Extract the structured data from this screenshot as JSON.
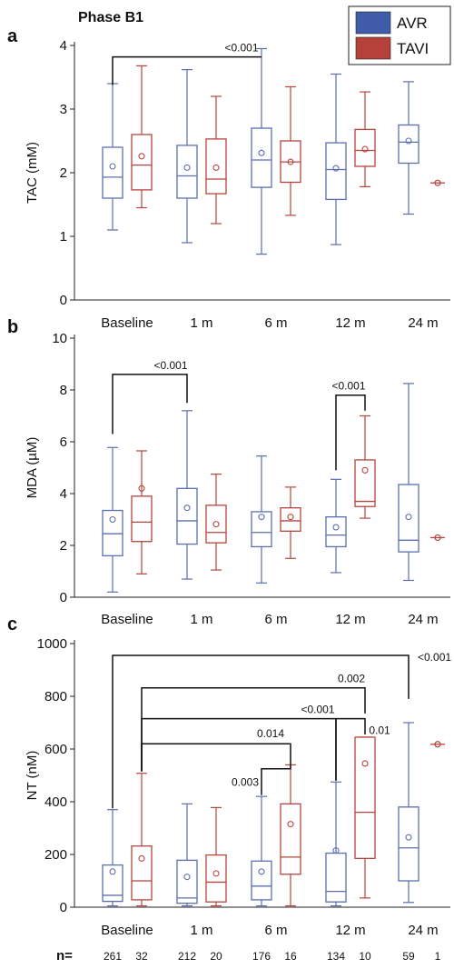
{
  "figure": {
    "phase_label": "Phase B1",
    "legend": [
      {
        "name": "AVR",
        "color": "#3F5BA9"
      },
      {
        "name": "TAVI",
        "color": "#B5413B"
      }
    ],
    "n_label": "n=",
    "n_values": [
      "261",
      "32",
      "212",
      "20",
      "176",
      "16",
      "134",
      "10",
      "59",
      "1"
    ]
  },
  "colors": {
    "AVR": "#5B6FB0",
    "TAVI": "#B5453D",
    "AVR_fill": "#3F5BA9",
    "TAVI_fill": "#B5413B"
  },
  "chart_data": [
    {
      "panel": "a",
      "type": "box",
      "ylabel": "TAC (mM)",
      "ylim": [
        0,
        4
      ],
      "yticks": [
        "0",
        "1",
        "2",
        "3",
        "4"
      ],
      "categories": [
        "Baseline",
        "1 m",
        "6 m",
        "12 m",
        "24 m"
      ],
      "series": [
        {
          "name": "AVR",
          "boxes": [
            {
              "min": 1.1,
              "q1": 1.6,
              "median": 1.93,
              "q3": 2.4,
              "max": 3.4,
              "mean": 2.1
            },
            {
              "min": 0.9,
              "q1": 1.6,
              "median": 1.95,
              "q3": 2.43,
              "max": 3.62,
              "mean": 2.08
            },
            {
              "min": 0.72,
              "q1": 1.77,
              "median": 2.2,
              "q3": 2.7,
              "max": 3.95,
              "mean": 2.31
            },
            {
              "min": 0.87,
              "q1": 1.58,
              "median": 2.05,
              "q3": 2.47,
              "max": 3.55,
              "mean": 2.07
            },
            {
              "min": 1.35,
              "q1": 2.15,
              "median": 2.48,
              "q3": 2.75,
              "max": 3.43,
              "mean": 2.5
            }
          ]
        },
        {
          "name": "TAVI",
          "boxes": [
            {
              "min": 1.45,
              "q1": 1.73,
              "median": 2.12,
              "q3": 2.6,
              "max": 3.68,
              "mean": 2.26
            },
            {
              "min": 1.2,
              "q1": 1.67,
              "median": 1.9,
              "q3": 2.53,
              "max": 3.2,
              "mean": 2.08
            },
            {
              "min": 1.33,
              "q1": 1.85,
              "median": 2.17,
              "q3": 2.5,
              "max": 3.35,
              "mean": 2.17
            },
            {
              "min": 1.78,
              "q1": 2.1,
              "median": 2.35,
              "q3": 2.68,
              "max": 3.27,
              "mean": 2.37
            },
            {
              "single": 1.84
            }
          ]
        }
      ],
      "annotations": [
        {
          "label": "<0.001",
          "from": [
            0,
            "AVR"
          ],
          "to": [
            2,
            "AVR"
          ],
          "level": 3.82,
          "tick_ends": [
            3.38,
            3.82
          ]
        }
      ]
    },
    {
      "panel": "b",
      "type": "box",
      "ylabel": "MDA (µM)",
      "ylim": [
        0,
        10
      ],
      "yticks": [
        "0",
        "2",
        "4",
        "6",
        "8",
        "10"
      ],
      "categories": [
        "Baseline",
        "1 m",
        "6 m",
        "12 m",
        "24 m"
      ],
      "series": [
        {
          "name": "AVR",
          "boxes": [
            {
              "min": 0.2,
              "q1": 1.6,
              "median": 2.45,
              "q3": 3.35,
              "max": 5.78,
              "mean": 3.0
            },
            {
              "min": 0.7,
              "q1": 2.05,
              "median": 2.95,
              "q3": 4.2,
              "max": 7.2,
              "mean": 3.45
            },
            {
              "min": 0.55,
              "q1": 1.95,
              "median": 2.5,
              "q3": 3.3,
              "max": 5.45,
              "mean": 3.1
            },
            {
              "min": 0.95,
              "q1": 1.95,
              "median": 2.4,
              "q3": 3.1,
              "max": 4.55,
              "mean": 2.7
            },
            {
              "min": 0.65,
              "q1": 1.75,
              "median": 2.2,
              "q3": 4.35,
              "max": 8.25,
              "mean": 3.1
            }
          ]
        },
        {
          "name": "TAVI",
          "boxes": [
            {
              "min": 0.9,
              "q1": 2.15,
              "median": 2.9,
              "q3": 3.9,
              "max": 5.65,
              "mean": 4.2
            },
            {
              "min": 1.05,
              "q1": 2.1,
              "median": 2.5,
              "q3": 3.55,
              "max": 4.75,
              "mean": 2.82
            },
            {
              "min": 1.5,
              "q1": 2.55,
              "median": 2.95,
              "q3": 3.45,
              "max": 4.25,
              "mean": 3.1
            },
            {
              "min": 3.05,
              "q1": 3.5,
              "median": 3.7,
              "q3": 5.3,
              "max": 7.0,
              "mean": 4.9
            },
            {
              "single": 2.3
            }
          ]
        }
      ],
      "annotations": [
        {
          "label": "<0.001",
          "from": [
            0,
            "AVR"
          ],
          "to": [
            1,
            "AVR"
          ],
          "level": 8.6,
          "tick_ends": [
            6.3,
            7.5
          ]
        },
        {
          "label": "<0.001",
          "from": [
            3,
            "AVR"
          ],
          "to": [
            3,
            "TAVI"
          ],
          "level": 7.8,
          "tick_ends": [
            4.9,
            7.2
          ]
        }
      ]
    },
    {
      "panel": "c",
      "type": "box",
      "ylabel": "NT (nM)",
      "ylim": [
        0,
        1000
      ],
      "yticks": [
        "0",
        "200",
        "400",
        "600",
        "800",
        "1000"
      ],
      "categories": [
        "Baseline",
        "1 m",
        "6 m",
        "12 m",
        "24 m"
      ],
      "series": [
        {
          "name": "AVR",
          "boxes": [
            {
              "min": 5,
              "q1": 22,
              "median": 45,
              "q3": 160,
              "max": 370,
              "mean": 135
            },
            {
              "min": 5,
              "q1": 15,
              "median": 35,
              "q3": 178,
              "max": 392,
              "mean": 115
            },
            {
              "min": 5,
              "q1": 28,
              "median": 80,
              "q3": 175,
              "max": 420,
              "mean": 135
            },
            {
              "min": 5,
              "q1": 20,
              "median": 60,
              "q3": 205,
              "max": 475,
              "mean": 215
            },
            {
              "min": 18,
              "q1": 100,
              "median": 225,
              "q3": 380,
              "max": 700,
              "mean": 265
            }
          ]
        },
        {
          "name": "TAVI",
          "boxes": [
            {
              "min": 5,
              "q1": 28,
              "median": 100,
              "q3": 232,
              "max": 508,
              "mean": 185
            },
            {
              "min": 5,
              "q1": 20,
              "median": 95,
              "q3": 198,
              "max": 378,
              "mean": 128
            },
            {
              "min": 5,
              "q1": 125,
              "median": 190,
              "q3": 392,
              "max": 540,
              "mean": 315
            },
            {
              "min": 35,
              "q1": 185,
              "median": 360,
              "q3": 645,
              "max": 645,
              "mean": 545
            },
            {
              "single": 618
            }
          ]
        }
      ],
      "annotations": [
        {
          "label": "<0.001",
          "from": [
            0,
            "AVR"
          ],
          "to": [
            4,
            "AVR"
          ],
          "level": 955,
          "tick_ends": [
            375,
            790
          ]
        },
        {
          "label": "0.002",
          "from": [
            0,
            "TAVI"
          ],
          "to": [
            3,
            "TAVI"
          ],
          "level": 832,
          "tick_ends": [
            515,
            735
          ]
        },
        {
          "label": "<0.001",
          "from": [
            0,
            "TAVI"
          ],
          "to": [
            3,
            "AVR"
          ],
          "level": 715,
          "tick_ends": [
            515,
            480
          ]
        },
        {
          "label": "0.014",
          "from": [
            0,
            "TAVI"
          ],
          "to": [
            2,
            "TAVI"
          ],
          "level": 620,
          "tick_ends": [
            515,
            555
          ]
        },
        {
          "label": "0.003",
          "from": [
            2,
            "AVR"
          ],
          "to": [
            2,
            "TAVI"
          ],
          "level": 525,
          "tick_ends": [
            425,
            555
          ]
        },
        {
          "label": "0.01",
          "from": [
            3,
            "AVR"
          ],
          "to": [
            3,
            "TAVI"
          ],
          "level": 715,
          "tick_ends": [
            480,
            655
          ]
        }
      ]
    }
  ]
}
